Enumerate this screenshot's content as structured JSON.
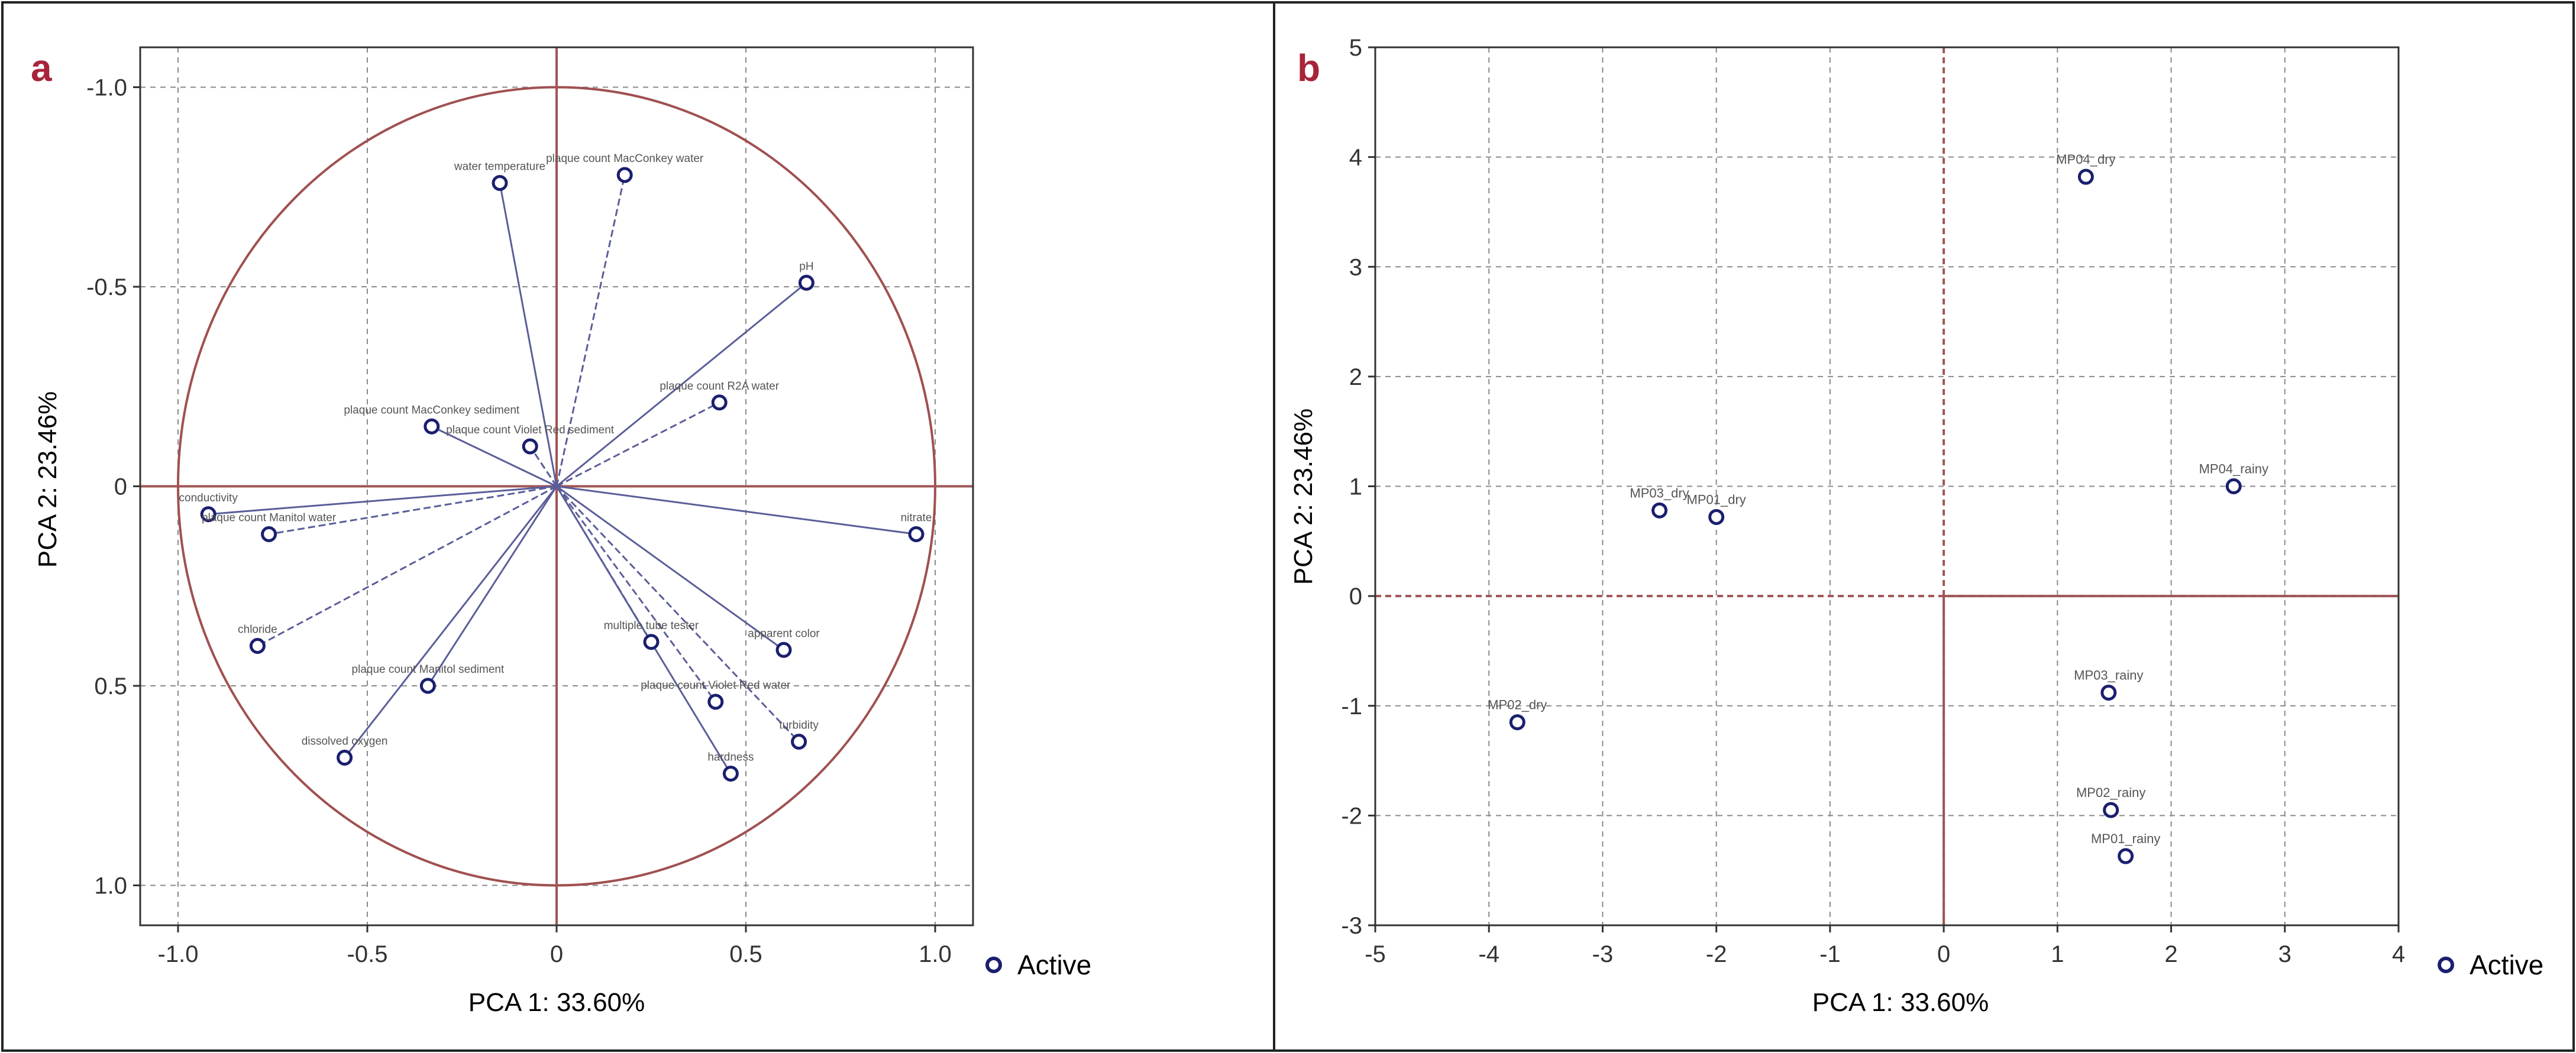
{
  "panels": [
    {
      "letter": "a",
      "legend_label": "Active"
    },
    {
      "letter": "b",
      "legend_label": "Active"
    }
  ],
  "colors": {
    "panel_letter": "#a8243a",
    "axis_line": "#a05555",
    "grid": "#8a8a8a",
    "circle": "#a05050",
    "vector": "#5a5e98",
    "point": "#1a1f6e",
    "label_text": "#555555",
    "tick_text": "#333333"
  },
  "chart_data": [
    {
      "type": "scatter",
      "subtype": "PCA loading plot (correlation circle)",
      "xlabel": "PCA 1: 33.60%",
      "ylabel": "PCA 2: 23.46%",
      "xlim": [
        -1.1,
        1.1
      ],
      "ylim": [
        1.1,
        -1.1
      ],
      "y_axis_inverted": true,
      "x_ticks": [
        -1.0,
        -0.5,
        0.0,
        0.5,
        1.0
      ],
      "x_tick_labels": [
        "-1.0",
        "-0.5",
        "0",
        "0.5",
        "1.0"
      ],
      "y_ticks": [
        -1.0,
        -0.5,
        0.0,
        0.5,
        1.0
      ],
      "y_tick_labels": [
        "-1.0",
        "-0.5",
        "0",
        "0.5",
        "1.0"
      ],
      "grid": true,
      "unit_circle": true,
      "vectors_from_origin": true,
      "legend": {
        "entries": [
          "Active"
        ],
        "position": "right"
      },
      "points": [
        {
          "label": "water temperature",
          "x": -0.15,
          "y": -0.76
        },
        {
          "label": "plaque count MacConkey water",
          "x": 0.18,
          "y": -0.78
        },
        {
          "label": "pH",
          "x": 0.66,
          "y": -0.51
        },
        {
          "label": "plaque count R2A water",
          "x": 0.43,
          "y": -0.21
        },
        {
          "label": "plaque count MacConkey sediment",
          "x": -0.33,
          "y": -0.15
        },
        {
          "label": "plaque count Violet Red sediment",
          "x": -0.07,
          "y": -0.1
        },
        {
          "label": "conductivity",
          "x": -0.92,
          "y": 0.07
        },
        {
          "label": "plaque count Manitol water",
          "x": -0.76,
          "y": 0.12
        },
        {
          "label": "nitrate",
          "x": 0.95,
          "y": 0.12
        },
        {
          "label": "chloride",
          "x": -0.79,
          "y": 0.4
        },
        {
          "label": "plaque count Manitol sediment",
          "x": -0.34,
          "y": 0.5
        },
        {
          "label": "multiple tube tester",
          "x": 0.25,
          "y": 0.39
        },
        {
          "label": "apparent color",
          "x": 0.6,
          "y": 0.41
        },
        {
          "label": "plaque count Violet Red water",
          "x": 0.42,
          "y": 0.54
        },
        {
          "label": "dissolved oxygen",
          "x": -0.56,
          "y": 0.68
        },
        {
          "label": "turbidity",
          "x": 0.64,
          "y": 0.64
        },
        {
          "label": "hardness",
          "x": 0.46,
          "y": 0.72
        }
      ]
    },
    {
      "type": "scatter",
      "subtype": "PCA score plot",
      "xlabel": "PCA 1: 33.60%",
      "ylabel": "PCA 2: 23.46%",
      "xlim": [
        -5,
        4
      ],
      "ylim": [
        -3,
        5
      ],
      "x_ticks": [
        -5,
        -4,
        -3,
        -2,
        -1,
        0,
        1,
        2,
        3,
        4
      ],
      "y_ticks": [
        -3,
        -2,
        -1,
        0,
        1,
        2,
        3,
        4,
        5
      ],
      "grid": true,
      "legend": {
        "entries": [
          "Active"
        ],
        "position": "right"
      },
      "points": [
        {
          "label": "MP04_dry",
          "x": 1.25,
          "y": 3.82
        },
        {
          "label": "MP04_rainy",
          "x": 2.55,
          "y": 1.0
        },
        {
          "label": "MP03_dry",
          "x": -2.5,
          "y": 0.78
        },
        {
          "label": "MP01_dry",
          "x": -2.0,
          "y": 0.72
        },
        {
          "label": "MP03_rainy",
          "x": 1.45,
          "y": -0.88
        },
        {
          "label": "MP02_dry",
          "x": -3.75,
          "y": -1.15
        },
        {
          "label": "MP02_rainy",
          "x": 1.47,
          "y": -1.95
        },
        {
          "label": "MP01_rainy",
          "x": 1.6,
          "y": -2.37
        }
      ]
    }
  ]
}
